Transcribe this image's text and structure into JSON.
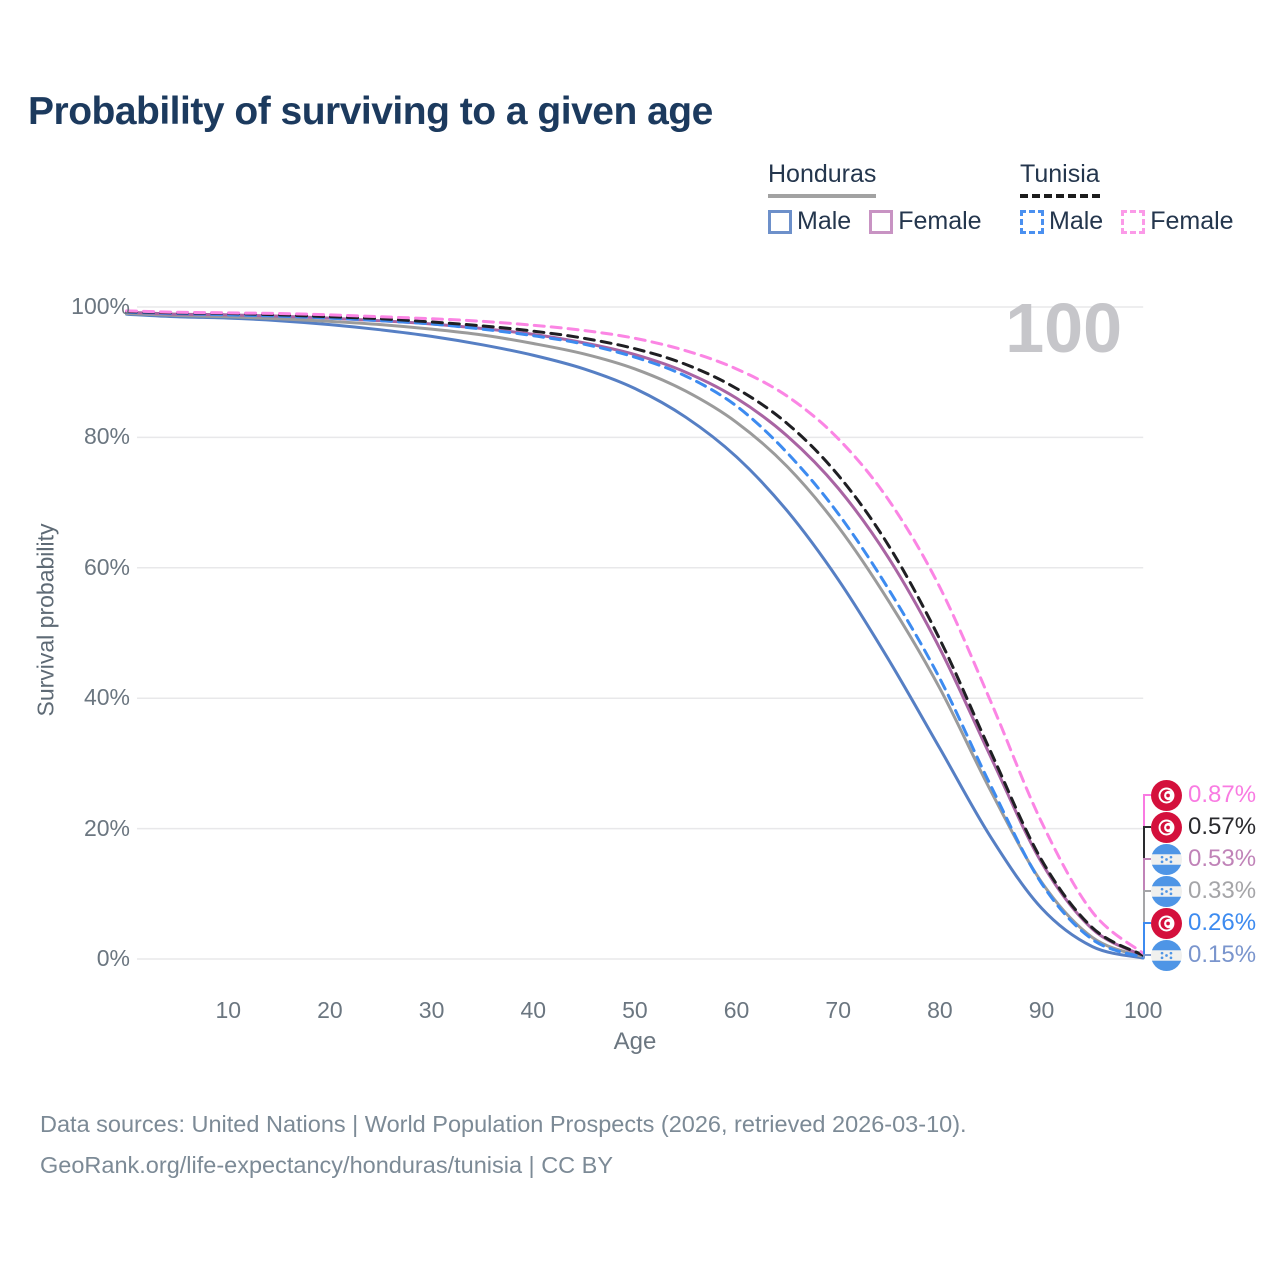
{
  "title": "Probability of surviving to a given age",
  "watermark_age": "100",
  "legend": {
    "groups": [
      {
        "country": "Honduras",
        "line_style": "solid",
        "underline_color": "#a2a2a2",
        "items": [
          {
            "label": "Male",
            "color": "#6d90ca",
            "dashed": false
          },
          {
            "label": "Female",
            "color": "#c893c3",
            "dashed": false
          }
        ]
      },
      {
        "country": "Tunisia",
        "line_style": "dashed",
        "underline_color": "#1c1c1c",
        "items": [
          {
            "label": "Male",
            "color": "#4a90f0",
            "dashed": true
          },
          {
            "label": "Female",
            "color": "#fb9ae8",
            "dashed": true
          }
        ]
      }
    ]
  },
  "chart_data": {
    "type": "line",
    "title": "Probability of surviving to a given age",
    "xlabel": "Age",
    "ylabel": "Survival probability",
    "xlim": [
      0,
      100
    ],
    "ylim": [
      0,
      100
    ],
    "grid": "horizontal",
    "x_ticks": [
      10,
      20,
      30,
      40,
      50,
      60,
      70,
      80,
      90,
      100
    ],
    "y_ticks": [
      0,
      20,
      40,
      60,
      80,
      100
    ],
    "y_tick_suffix": "%",
    "hover_age": "100",
    "x": [
      0,
      5,
      10,
      15,
      20,
      25,
      30,
      35,
      40,
      45,
      50,
      55,
      60,
      65,
      70,
      75,
      80,
      85,
      90,
      95,
      100
    ],
    "series": [
      {
        "name": "Tunisia Female",
        "country": "Tunisia",
        "sex": "Female",
        "color": "#fb85e4",
        "label_color": "#f97be2",
        "dashed": true,
        "flag": "tunisia",
        "end_label": "0.87%",
        "values": [
          99.4,
          99.2,
          99.1,
          99.0,
          98.8,
          98.5,
          98.2,
          97.8,
          97.2,
          96.4,
          95.2,
          93.3,
          90.5,
          86.3,
          79.8,
          70.3,
          57.0,
          39.5,
          21.0,
          7.2,
          0.87
        ]
      },
      {
        "name": "Tunisia",
        "country": "Tunisia",
        "sex": "All",
        "color": "#1f1f23",
        "label_color": "#2a2a2e",
        "dashed": true,
        "flag": "tunisia",
        "end_label": "0.57%",
        "values": [
          99.3,
          99.1,
          99.0,
          98.8,
          98.5,
          98.2,
          97.7,
          97.1,
          96.3,
          95.2,
          93.6,
          91.2,
          87.5,
          82.1,
          74.2,
          63.3,
          49.0,
          31.8,
          15.2,
          4.8,
          0.57
        ]
      },
      {
        "name": "Honduras Female",
        "country": "Honduras",
        "sex": "Female",
        "color": "#a964a3",
        "label_color": "#c083b8",
        "dashed": false,
        "flag": "honduras",
        "end_label": "0.53%",
        "values": [
          99.2,
          98.9,
          98.8,
          98.6,
          98.3,
          97.9,
          97.4,
          96.7,
          95.8,
          94.5,
          92.7,
          90.0,
          86.0,
          80.2,
          72.2,
          61.4,
          47.6,
          31.0,
          14.8,
          4.6,
          0.53
        ]
      },
      {
        "name": "Honduras",
        "country": "Honduras",
        "sex": "All",
        "color": "#9b9b9b",
        "label_color": "#a5a5a8",
        "dashed": false,
        "flag": "honduras",
        "end_label": "0.33%",
        "values": [
          99.0,
          98.7,
          98.5,
          98.2,
          97.8,
          97.3,
          96.6,
          95.7,
          94.4,
          92.8,
          90.5,
          87.1,
          82.3,
          75.5,
          66.3,
          54.8,
          41.5,
          25.8,
          11.8,
          3.3,
          0.33
        ]
      },
      {
        "name": "Tunisia Male",
        "country": "Tunisia",
        "sex": "Male",
        "color": "#3d8bf0",
        "label_color": "#3d8bf0",
        "dashed": true,
        "flag": "tunisia",
        "end_label": "0.26%",
        "values": [
          99.2,
          99.0,
          98.8,
          98.6,
          98.3,
          97.9,
          97.4,
          96.6,
          95.6,
          94.3,
          92.3,
          89.4,
          84.8,
          77.6,
          68.3,
          56.6,
          43.0,
          26.6,
          11.6,
          3.0,
          0.26
        ]
      },
      {
        "name": "Honduras Male",
        "country": "Honduras",
        "sex": "Male",
        "color": "#567fc4",
        "label_color": "#7a95cd",
        "dashed": false,
        "flag": "honduras",
        "end_label": "0.15%",
        "values": [
          98.9,
          98.5,
          98.3,
          97.9,
          97.3,
          96.5,
          95.5,
          94.2,
          92.6,
          90.5,
          87.5,
          83.1,
          77.0,
          68.7,
          58.2,
          45.8,
          32.3,
          18.7,
          7.8,
          1.9,
          0.15
        ]
      }
    ]
  },
  "footer": {
    "line1": "Data sources: United Nations | World Population Prospects (2026, retrieved 2026-03-10).",
    "line2": "GeoRank.org/life-expectancy/honduras/tunisia | CC BY"
  }
}
